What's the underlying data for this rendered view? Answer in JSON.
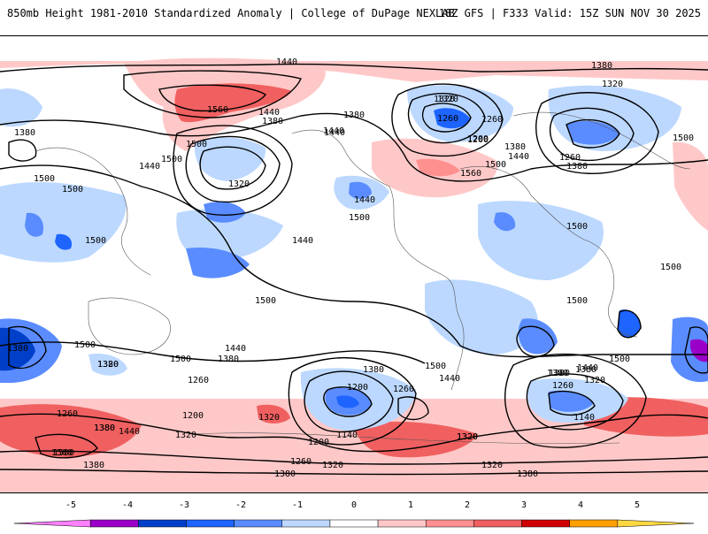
{
  "header": {
    "title": "850mb Height 1981-2010 Standardized Anomaly | College of DuPage NEXLAB",
    "run_info": "18Z GFS | F333 Valid: 15Z SUN NOV 30 2025"
  },
  "contour_labels": [
    "1440",
    "1380",
    "1320",
    "1260",
    "1200",
    "1560",
    "1440",
    "1380",
    "1500",
    "1440",
    "1320",
    "1380",
    "1440",
    "1320",
    "1260",
    "1200",
    "1380",
    "1440",
    "1500",
    "1560",
    "1380",
    "1320",
    "1260",
    "1380",
    "1500",
    "1500",
    "1440",
    "1380",
    "1500",
    "1500",
    "1440",
    "1500",
    "1500",
    "1500",
    "1500",
    "1500",
    "1380",
    "1500",
    "1380",
    "1440",
    "1380",
    "1320",
    "1260",
    "1200",
    "1320",
    "1320",
    "1380",
    "1200",
    "1260",
    "1140",
    "1200",
    "1320",
    "1500",
    "1440",
    "1380",
    "1440",
    "1380",
    "1320",
    "1260",
    "1140",
    "1500",
    "1500",
    "1260",
    "1380",
    "1440",
    "1500",
    "1320",
    "1260",
    "1320",
    "1380",
    "1380",
    "1320",
    "1380",
    "1500",
    "1440",
    "1500",
    "1380"
  ],
  "colorbar": {
    "labels": [
      "-5",
      "-4",
      "-3",
      "-2",
      "-1",
      "0",
      "1",
      "2",
      "3",
      "4",
      "5"
    ],
    "colors": [
      "#ff80ff",
      "#9a00c8",
      "#0040c8",
      "#1e64ff",
      "#5a8cff",
      "#bcd8ff",
      "#ffffff",
      "#ffc8c8",
      "#ff9090",
      "#f06060",
      "#d00000",
      "#ffa000",
      "#ffd840"
    ]
  }
}
